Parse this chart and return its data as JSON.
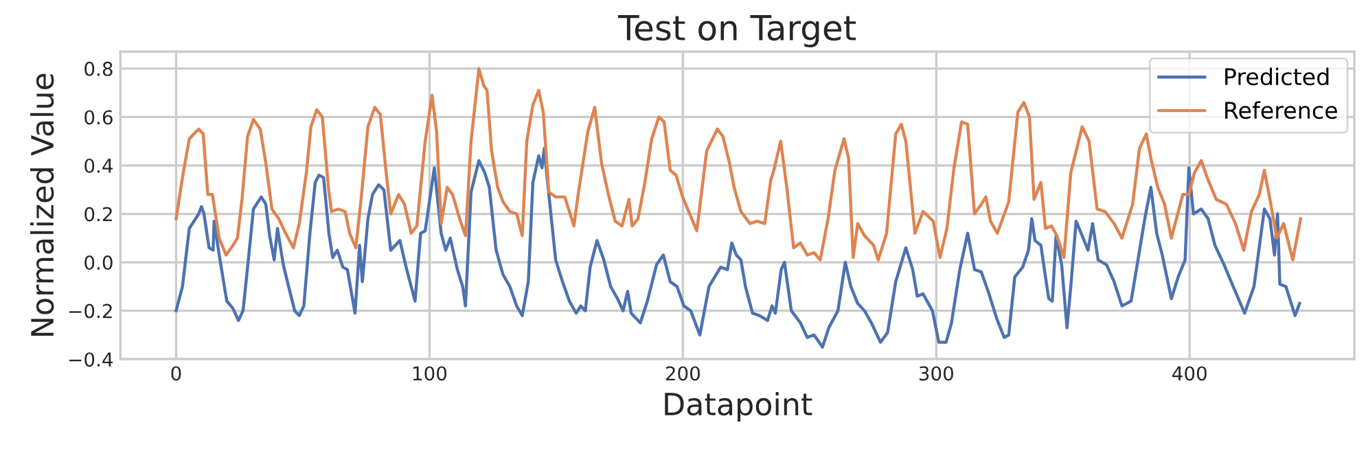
{
  "chart_data": {
    "type": "line",
    "title": "Test on Target",
    "xlabel": "Datapoint",
    "ylabel": "Normalized Value",
    "xlim": [
      -22,
      465
    ],
    "ylim": [
      -0.4,
      0.87
    ],
    "xticks": [
      0,
      100,
      200,
      300,
      400
    ],
    "yticks": [
      {
        "value": -0.4,
        "label": "−0.4"
      },
      {
        "value": -0.2,
        "label": "−0.2"
      },
      {
        "value": 0.0,
        "label": "0.0"
      },
      {
        "value": 0.2,
        "label": "0.2"
      },
      {
        "value": 0.4,
        "label": "0.4"
      },
      {
        "value": 0.6,
        "label": "0.6"
      },
      {
        "value": 0.8,
        "label": "0.8"
      }
    ],
    "grid": true,
    "legend": "top right",
    "line_style": "solid",
    "series": [
      {
        "name": "Predicted",
        "color": "#4c72b0",
        "x": [
          0,
          2.5,
          5.2,
          8.9,
          10,
          11,
          13,
          14.6,
          15,
          17,
          20,
          22.4,
          24.6,
          26.4,
          28.7,
          30.5,
          33.6,
          35.4,
          36.9,
          38.7,
          40,
          42.3,
          44.4,
          46.8,
          48.6,
          50.4,
          52.8,
          54.9,
          56.4,
          58.2,
          60.3,
          61.8,
          63.6,
          65.8,
          67.6,
          70.6,
          72.4,
          73.5,
          75.7,
          77.5,
          79.9,
          82,
          84.7,
          88.3,
          91,
          94.3,
          96.5,
          98.3,
          101.9,
          104.6,
          106.4,
          108.2,
          111,
          113.1,
          114.2,
          116.4,
          119.5,
          121.8,
          123.6,
          126.3,
          129,
          131.7,
          134.4,
          136.6,
          139,
          140.8,
          143.1,
          144.4,
          145.3,
          147.1,
          149.8,
          152.5,
          155.2,
          157.9,
          159.7,
          161.5,
          163.4,
          166.1,
          168.8,
          171.5,
          174.2,
          176.4,
          178.2,
          179.6,
          183.2,
          186,
          189.6,
          192.3,
          195,
          197.7,
          200.4,
          203.1,
          206.7,
          210.3,
          214.9,
          217.6,
          219.3,
          221.1,
          222.9,
          224.7,
          227.5,
          230.2,
          233.4,
          235.2,
          236.5,
          238.8,
          240.1,
          242.8,
          246.4,
          249.1,
          251.8,
          255.1,
          257.6,
          261.2,
          264.1,
          266.3,
          269,
          271.7,
          274.4,
          278,
          280.8,
          284,
          288,
          290.7,
          292.5,
          294.8,
          298.5,
          301,
          303.9,
          306,
          309.3,
          312.4,
          315.1,
          317.8,
          320.5,
          323.8,
          326.8,
          328.6,
          331,
          334.1,
          336.4,
          337.7,
          339,
          341.3,
          343.1,
          344.4,
          345.8,
          347.3,
          349.5,
          351.6,
          353.1,
          355.2,
          357.6,
          359.9,
          361.7,
          363.9,
          367.2,
          370.2,
          373.3,
          376.9,
          379.3,
          382.3,
          384.7,
          387,
          389.2,
          392.8,
          395.5,
          398.2,
          399.7,
          401.5,
          404.6,
          407.3,
          410,
          413.6,
          417.2,
          421.7,
          425.4,
          429.5,
          431.7,
          433.5,
          434.7,
          435.6,
          438,
          441.6,
          443.4
        ],
        "values": [
          -0.2,
          -0.1,
          0.14,
          0.2,
          0.23,
          0.2,
          0.06,
          0.05,
          0.17,
          0.03,
          -0.16,
          -0.19,
          -0.24,
          -0.2,
          0.03,
          0.22,
          0.27,
          0.24,
          0.11,
          0.01,
          0.14,
          -0.01,
          -0.1,
          -0.2,
          -0.22,
          -0.18,
          0.12,
          0.33,
          0.36,
          0.35,
          0.12,
          0.02,
          0.05,
          -0.02,
          -0.03,
          -0.21,
          0.07,
          -0.08,
          0.18,
          0.28,
          0.32,
          0.3,
          0.05,
          0.09,
          -0.03,
          -0.16,
          0.12,
          0.13,
          0.39,
          0.12,
          0.05,
          0.1,
          -0.03,
          -0.1,
          -0.18,
          0.29,
          0.42,
          0.37,
          0.31,
          0.05,
          -0.05,
          -0.1,
          -0.18,
          -0.22,
          -0.08,
          0.33,
          0.44,
          0.39,
          0.47,
          0.28,
          0.01,
          -0.08,
          -0.16,
          -0.21,
          -0.18,
          -0.2,
          -0.02,
          0.09,
          0.01,
          -0.1,
          -0.15,
          -0.2,
          -0.12,
          -0.21,
          -0.25,
          -0.16,
          -0.01,
          0.03,
          -0.08,
          -0.1,
          -0.18,
          -0.2,
          -0.3,
          -0.1,
          -0.02,
          -0.03,
          0.08,
          0.03,
          0.01,
          -0.1,
          -0.21,
          -0.22,
          -0.24,
          -0.18,
          -0.21,
          -0.03,
          0.0,
          -0.2,
          -0.25,
          -0.31,
          -0.3,
          -0.35,
          -0.27,
          -0.2,
          0.0,
          -0.1,
          -0.17,
          -0.2,
          -0.25,
          -0.33,
          -0.29,
          -0.08,
          0.06,
          -0.03,
          -0.14,
          -0.13,
          -0.2,
          -0.33,
          -0.33,
          -0.25,
          -0.03,
          0.12,
          -0.03,
          -0.04,
          -0.12,
          -0.23,
          -0.31,
          -0.3,
          -0.06,
          -0.02,
          0.05,
          0.18,
          0.09,
          0.07,
          -0.06,
          -0.15,
          -0.16,
          0.11,
          -0.01,
          -0.27,
          -0.1,
          0.17,
          0.11,
          0.05,
          0.16,
          0.01,
          -0.01,
          -0.08,
          -0.18,
          -0.16,
          -0.01,
          0.18,
          0.31,
          0.12,
          0.03,
          -0.15,
          -0.06,
          0.01,
          0.39,
          0.2,
          0.22,
          0.18,
          0.07,
          -0.01,
          -0.1,
          -0.21,
          -0.1,
          0.22,
          0.18,
          0.03,
          0.2,
          -0.09,
          -0.1,
          -0.22,
          -0.17
        ]
      },
      {
        "name": "Reference",
        "color": "#dd8452",
        "x": [
          0,
          2.5,
          5.2,
          7,
          8.9,
          10.7,
          12.5,
          14.3,
          17,
          19.7,
          22.4,
          24.2,
          26,
          28.2,
          30.5,
          33.2,
          35.4,
          37.8,
          40.5,
          43.2,
          46.3,
          48.6,
          51.4,
          53.2,
          55.5,
          57.7,
          60.1,
          61.3,
          64,
          66.7,
          68.5,
          70.9,
          73,
          75.7,
          78.4,
          80.6,
          82.9,
          84.7,
          87.8,
          90.1,
          92.8,
          95,
          98.3,
          101,
          102.8,
          104.6,
          107,
          109.1,
          111.9,
          114.2,
          116.4,
          119.5,
          121.4,
          122.7,
          124.5,
          126.9,
          129,
          131.7,
          134.4,
          136.6,
          138.4,
          140.8,
          143.1,
          144.9,
          147.1,
          149.8,
          153.4,
          157,
          158.8,
          162.5,
          165.2,
          167.9,
          170.6,
          173.3,
          176,
          178.7,
          180,
          182.3,
          185,
          187.7,
          190.5,
          192.6,
          195,
          197.3,
          199.9,
          202.7,
          205.5,
          209.4,
          213.6,
          215.8,
          218.4,
          220.2,
          222.9,
          226.5,
          229.3,
          232.3,
          234.7,
          235.9,
          238.6,
          241,
          243.7,
          246.4,
          249.1,
          251.8,
          254.2,
          257.3,
          260,
          263.6,
          265.4,
          267.2,
          269,
          271.7,
          275.3,
          277.1,
          280.4,
          284,
          286.2,
          288,
          291.6,
          294.8,
          298.8,
          301.5,
          304.2,
          307,
          310,
          312.4,
          315.1,
          317.8,
          319.6,
          321.4,
          324.1,
          328.6,
          332.2,
          334.6,
          336.8,
          338.6,
          341.3,
          343.1,
          345.5,
          347.6,
          350.4,
          353.1,
          357.6,
          360.3,
          363.5,
          366.6,
          370.2,
          373.3,
          377.5,
          380.2,
          382.9,
          384.7,
          387.4,
          390.1,
          392.8,
          397.3,
          399.7,
          401.9,
          404.6,
          407.3,
          410.5,
          414.5,
          418.1,
          421.4,
          424.4,
          427.5,
          429.5,
          431.7,
          434.4,
          437.1,
          440.7,
          443.8
        ],
        "values": [
          0.18,
          0.35,
          0.51,
          0.53,
          0.55,
          0.53,
          0.28,
          0.28,
          0.1,
          0.03,
          0.07,
          0.1,
          0.26,
          0.52,
          0.59,
          0.55,
          0.41,
          0.22,
          0.18,
          0.12,
          0.06,
          0.16,
          0.37,
          0.56,
          0.63,
          0.6,
          0.31,
          0.21,
          0.22,
          0.21,
          0.12,
          0.06,
          0.26,
          0.56,
          0.64,
          0.61,
          0.37,
          0.2,
          0.28,
          0.24,
          0.12,
          0.15,
          0.5,
          0.69,
          0.54,
          0.16,
          0.31,
          0.28,
          0.18,
          0.11,
          0.5,
          0.8,
          0.73,
          0.71,
          0.46,
          0.31,
          0.25,
          0.21,
          0.2,
          0.11,
          0.5,
          0.65,
          0.71,
          0.62,
          0.29,
          0.27,
          0.27,
          0.15,
          0.29,
          0.54,
          0.64,
          0.41,
          0.28,
          0.17,
          0.15,
          0.26,
          0.15,
          0.18,
          0.33,
          0.51,
          0.6,
          0.58,
          0.38,
          0.36,
          0.27,
          0.2,
          0.13,
          0.46,
          0.55,
          0.52,
          0.41,
          0.31,
          0.21,
          0.16,
          0.17,
          0.16,
          0.34,
          0.38,
          0.5,
          0.31,
          0.06,
          0.08,
          0.03,
          0.04,
          0.01,
          0.18,
          0.38,
          0.51,
          0.43,
          0.02,
          0.16,
          0.11,
          0.07,
          0.01,
          0.12,
          0.53,
          0.57,
          0.5,
          0.12,
          0.21,
          0.17,
          0.02,
          0.14,
          0.39,
          0.58,
          0.57,
          0.2,
          0.24,
          0.27,
          0.17,
          0.12,
          0.25,
          0.62,
          0.66,
          0.6,
          0.26,
          0.33,
          0.14,
          0.15,
          0.11,
          0.02,
          0.37,
          0.56,
          0.5,
          0.22,
          0.21,
          0.16,
          0.1,
          0.24,
          0.47,
          0.53,
          0.43,
          0.31,
          0.24,
          0.1,
          0.28,
          0.28,
          0.37,
          0.42,
          0.34,
          0.26,
          0.24,
          0.16,
          0.05,
          0.21,
          0.28,
          0.38,
          0.26,
          0.1,
          0.16,
          0.01,
          0.18
        ]
      }
    ]
  }
}
